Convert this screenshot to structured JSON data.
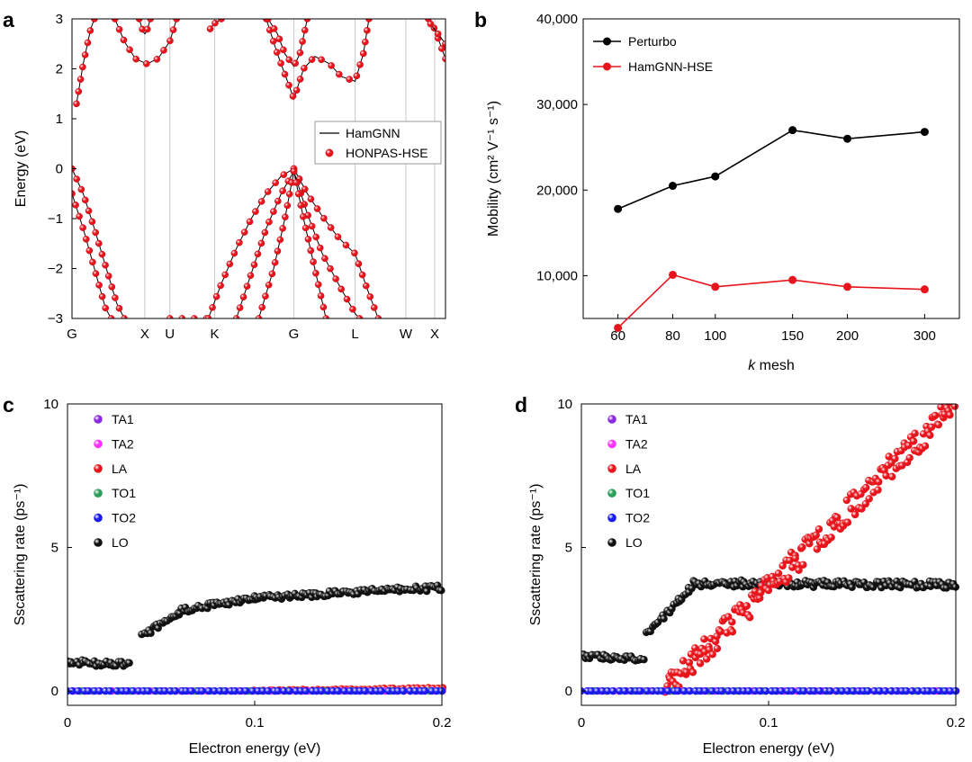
{
  "chart_data": [
    {
      "id": "a",
      "type": "line",
      "panel_label": "a",
      "ylabel": "Energy (eV)",
      "ylim": [
        -3,
        3
      ],
      "yticks": [
        3,
        2,
        1,
        0,
        -1,
        -2,
        -3
      ],
      "ytick_labels": [
        "3",
        "2",
        "1",
        "0",
        "−1",
        "−2",
        "−3"
      ],
      "kpath": [
        {
          "label": "G",
          "k": 0.0
        },
        {
          "label": "X",
          "k": 0.195
        },
        {
          "label": "U",
          "k": 0.262
        },
        {
          "label": "K",
          "k": 0.382
        },
        {
          "label": "G",
          "k": 0.594
        },
        {
          "label": "L",
          "k": 0.758
        },
        {
          "label": "W",
          "k": 0.894
        },
        {
          "label": "X",
          "k": 0.971
        }
      ],
      "legend": {
        "position": "center-right",
        "entries": [
          {
            "label": "HamGNN",
            "style": "line",
            "color": "#000000"
          },
          {
            "label": "HONPAS-HSE",
            "style": "marker",
            "color": "#e8141c"
          }
        ]
      },
      "bands": [
        [
          [
            0.0,
            -0.5
          ],
          [
            0.03,
            -1.2
          ],
          [
            0.06,
            -2.0
          ],
          [
            0.09,
            -2.8
          ],
          [
            0.105,
            -3.0
          ]
        ],
        [
          [
            0.0,
            0.0
          ],
          [
            0.03,
            -0.5
          ],
          [
            0.06,
            -1.2
          ],
          [
            0.09,
            -1.95
          ],
          [
            0.12,
            -2.7
          ],
          [
            0.14,
            -3.0
          ]
        ],
        [
          [
            0.012,
            1.3
          ],
          [
            0.03,
            2.1
          ],
          [
            0.05,
            2.8
          ],
          [
            0.06,
            3.0
          ]
        ],
        [
          [
            0.115,
            3.0
          ],
          [
            0.14,
            2.55
          ],
          [
            0.17,
            2.2
          ],
          [
            0.2,
            2.1
          ],
          [
            0.23,
            2.2
          ],
          [
            0.262,
            2.55
          ],
          [
            0.28,
            3.0
          ]
        ],
        [
          [
            0.18,
            3.0
          ],
          [
            0.19,
            2.75
          ],
          [
            0.195,
            2.7
          ],
          [
            0.2,
            2.75
          ],
          [
            0.21,
            3.0
          ]
        ],
        [
          [
            0.262,
            -3.0
          ],
          [
            0.3,
            -3.0
          ],
          [
            0.36,
            -3.0
          ]
        ],
        [
          [
            0.37,
            2.8
          ],
          [
            0.38,
            2.9
          ],
          [
            0.4,
            3.0
          ]
        ],
        [
          [
            0.365,
            -3.0
          ],
          [
            0.4,
            -2.3
          ],
          [
            0.44,
            -1.6
          ],
          [
            0.48,
            -1.0
          ],
          [
            0.52,
            -0.5
          ],
          [
            0.56,
            -0.15
          ],
          [
            0.594,
            0.0
          ]
        ],
        [
          [
            0.44,
            -3.0
          ],
          [
            0.48,
            -2.1
          ],
          [
            0.52,
            -1.2
          ],
          [
            0.56,
            -0.5
          ],
          [
            0.594,
            -0.05
          ]
        ],
        [
          [
            0.5,
            -3.0
          ],
          [
            0.54,
            -2.0
          ],
          [
            0.57,
            -1.0
          ],
          [
            0.594,
            -0.05
          ]
        ],
        [
          [
            0.594,
            0.0
          ],
          [
            0.63,
            -0.5
          ],
          [
            0.67,
            -0.95
          ],
          [
            0.71,
            -1.35
          ],
          [
            0.74,
            -1.58
          ],
          [
            0.758,
            -1.7
          ],
          [
            0.79,
            -2.4
          ],
          [
            0.82,
            -3.0
          ]
        ],
        [
          [
            0.594,
            -0.05
          ],
          [
            0.63,
            -0.9
          ],
          [
            0.67,
            -1.7
          ],
          [
            0.72,
            -2.4
          ],
          [
            0.758,
            -2.9
          ],
          [
            0.77,
            -3.0
          ]
        ],
        [
          [
            0.594,
            -0.05
          ],
          [
            0.62,
            -1.0
          ],
          [
            0.65,
            -2.0
          ],
          [
            0.68,
            -3.0
          ]
        ],
        [
          [
            0.52,
            3.0
          ],
          [
            0.55,
            2.3
          ],
          [
            0.594,
            1.4
          ],
          [
            0.62,
            2.0
          ],
          [
            0.65,
            2.25
          ],
          [
            0.69,
            2.1
          ],
          [
            0.72,
            1.85
          ],
          [
            0.758,
            1.75
          ],
          [
            0.78,
            2.3
          ],
          [
            0.795,
            3.0
          ]
        ],
        [
          [
            0.525,
            3.0
          ],
          [
            0.55,
            2.7
          ],
          [
            0.57,
            2.3
          ],
          [
            0.594,
            2.05
          ],
          [
            0.61,
            2.3
          ],
          [
            0.63,
            3.0
          ]
        ],
        [
          [
            0.954,
            3.0
          ],
          [
            0.971,
            2.8
          ],
          [
            1.0,
            2.2
          ]
        ],
        [
          [
            0.96,
            2.9
          ],
          [
            0.99,
            2.6
          ],
          [
            1.0,
            2.5
          ]
        ]
      ]
    },
    {
      "id": "b",
      "type": "line",
      "panel_label": "b",
      "xlabel": "k mesh",
      "ylabel": "Mobility (cm² V⁻¹ s⁻¹)",
      "x": [
        60,
        80,
        100,
        150,
        200,
        300
      ],
      "xscale": "log",
      "ylim": [
        5000,
        40000
      ],
      "yticks": [
        10000,
        20000,
        30000,
        40000
      ],
      "ytick_labels": [
        "10,000",
        "20,000",
        "30,000",
        "40,000"
      ],
      "xtick_labels": [
        "60",
        "80",
        "100",
        "150",
        "200",
        "300"
      ],
      "legend": {
        "position": "top-left"
      },
      "series": [
        {
          "name": "Perturbo",
          "color": "#000000",
          "values": [
            17800,
            20500,
            21600,
            27000,
            26000,
            26800
          ]
        },
        {
          "name": "HamGNN-HSE",
          "color": "#e8141c",
          "values": [
            3900,
            10100,
            8700,
            9500,
            8700,
            8400
          ]
        }
      ]
    },
    {
      "id": "c",
      "type": "scatter",
      "panel_label": "c",
      "xlabel": "Electron energy (eV)",
      "ylabel": "Sscattering rate (ps⁻¹)",
      "xlim": [
        0,
        0.2
      ],
      "ylim": [
        -0.5,
        10
      ],
      "xticks": [
        0,
        0.1,
        0.2
      ],
      "xtick_labels": [
        "0",
        "0.1",
        "0.2"
      ],
      "yticks": [
        0,
        5,
        10
      ],
      "ytick_labels": [
        "0",
        "5",
        "10"
      ],
      "legend": {
        "position": "top-left"
      },
      "series": [
        {
          "name": "TA1",
          "color": "#8a2be2",
          "trend": {
            "segments": [
              [
                0,
                0.2,
                0.0,
                0.0
              ]
            ],
            "count": 60,
            "noise": 0.0,
            "seed": 11
          }
        },
        {
          "name": "TA2",
          "color": "#ff33ff",
          "trend": {
            "segments": [
              [
                0,
                0.2,
                0.0,
                0.0
              ]
            ],
            "count": 60,
            "noise": 0.0,
            "seed": 12
          }
        },
        {
          "name": "LA",
          "color": "#e8141c",
          "trend": {
            "segments": [
              [
                0.1,
                0.2,
                0.02,
                0.1
              ]
            ],
            "count": 40,
            "noise": 0.02,
            "seed": 13
          }
        },
        {
          "name": "TO1",
          "color": "#2e9e5b",
          "trend": {
            "segments": [
              [
                0,
                0.2,
                0.0,
                0.0
              ]
            ],
            "count": 30,
            "noise": 0.0,
            "seed": 14
          }
        },
        {
          "name": "TO2",
          "color": "#1a1aee",
          "trend": {
            "segments": [
              [
                0,
                0.2,
                0.0,
                0.0
              ]
            ],
            "count": 70,
            "noise": 0.0,
            "seed": 15
          }
        },
        {
          "name": "LO",
          "color": "#111111",
          "trend": {
            "segments": [
              [
                0,
                0.033,
                1.0,
                0.92
              ],
              [
                0.04,
                0.06,
                1.9,
                2.75
              ],
              [
                0.06,
                0.1,
                2.8,
                3.25
              ],
              [
                0.1,
                0.2,
                3.25,
                3.6
              ]
            ],
            "count": 180,
            "noise": 0.1,
            "seed": 16
          }
        }
      ]
    },
    {
      "id": "d",
      "type": "scatter",
      "panel_label": "d",
      "xlabel": "Electron energy (eV)",
      "ylabel": "Sscattering rate (ps⁻¹)",
      "xlim": [
        0,
        0.2
      ],
      "ylim": [
        -0.5,
        10
      ],
      "xticks": [
        0,
        0.1,
        0.2
      ],
      "xtick_labels": [
        "0",
        "0.1",
        "0.2"
      ],
      "yticks": [
        0,
        5,
        10
      ],
      "ytick_labels": [
        "0",
        "5",
        "10"
      ],
      "legend": {
        "position": "top-left"
      },
      "series": [
        {
          "name": "TA1",
          "color": "#8a2be2",
          "trend": {
            "segments": [
              [
                0,
                0.2,
                0.0,
                0.0
              ]
            ],
            "count": 60,
            "noise": 0.0,
            "seed": 21
          }
        },
        {
          "name": "TA2",
          "color": "#ff33ff",
          "trend": {
            "segments": [
              [
                0,
                0.2,
                0.0,
                0.0
              ]
            ],
            "count": 60,
            "noise": 0.0,
            "seed": 22
          }
        },
        {
          "name": "LA",
          "color": "#e8141c",
          "trend": {
            "segments": [
              [
                0.045,
                0.2,
                0.1,
                10.0
              ]
            ],
            "count": 190,
            "noise": 0.45,
            "seed": 23
          }
        },
        {
          "name": "TO1",
          "color": "#2e9e5b",
          "trend": {
            "segments": [
              [
                0,
                0.2,
                0.0,
                0.0
              ]
            ],
            "count": 30,
            "noise": 0.0,
            "seed": 24
          }
        },
        {
          "name": "TO2",
          "color": "#1a1aee",
          "trend": {
            "segments": [
              [
                0,
                0.2,
                0.0,
                0.0
              ]
            ],
            "count": 70,
            "noise": 0.0,
            "seed": 25
          }
        },
        {
          "name": "LO",
          "color": "#111111",
          "trend": {
            "segments": [
              [
                0,
                0.033,
                1.25,
                1.12
              ],
              [
                0.035,
                0.06,
                2.0,
                3.7
              ],
              [
                0.06,
                0.2,
                3.75,
                3.7
              ]
            ],
            "count": 200,
            "noise": 0.12,
            "seed": 26
          }
        }
      ]
    }
  ]
}
